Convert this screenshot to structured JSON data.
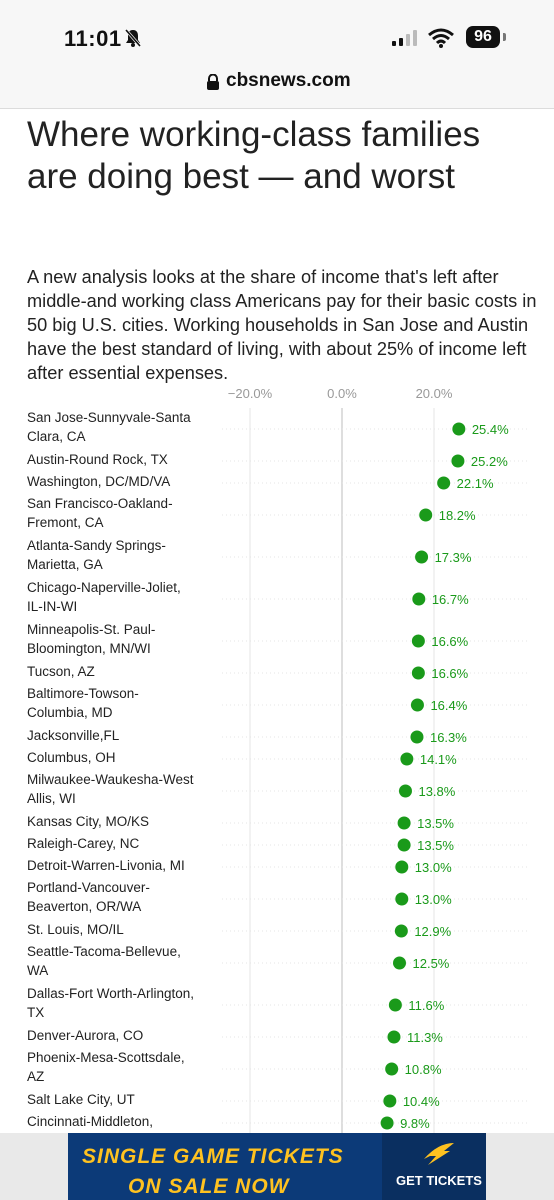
{
  "status_bar": {
    "time": "11:01",
    "battery": "96"
  },
  "browser": {
    "url": "cbsnews.com"
  },
  "article": {
    "headline": "Where working-class families are doing best — and worst",
    "dek": "A new analysis looks at the share of income that's left after middle-and working class Americans pay for their basic costs in 50 big U.S. cities. Working households in San Jose and Austin have the best standard of living, with about 25% of income left after essential expenses."
  },
  "ad": {
    "line1": "SINGLE GAME TICKETS",
    "line2": "ON SALE NOW",
    "cta": "GET TICKETS"
  },
  "colors": {
    "dot": "#1a9a1a",
    "value_text": "#1a9a1a",
    "ad_bg": "#0c3a78",
    "ad_text": "#ffc220"
  },
  "chart_data": {
    "type": "scatter",
    "x_ticks": [
      "−20.0%",
      "0.0%",
      "20.0%"
    ],
    "xlim": [
      -40,
      30
    ],
    "grid": true,
    "categories": [
      [
        "San Jose-Sunnyvale-Santa",
        "Clara, CA"
      ],
      [
        "Austin-Round Rock, TX"
      ],
      [
        "Washington, DC/MD/VA"
      ],
      [
        "San Francisco-Oakland-",
        "Fremont, CA"
      ],
      [
        "Atlanta-Sandy Springs-",
        "Marietta, GA"
      ],
      [
        "Chicago-Naperville-Joliet,",
        "IL-IN-WI"
      ],
      [
        "Minneapolis-St. Paul-",
        "Bloomington, MN/WI"
      ],
      [
        "Tucson, AZ"
      ],
      [
        "Baltimore-Towson-",
        "Columbia, MD"
      ],
      [
        "Jacksonville,FL"
      ],
      [
        "Columbus, OH"
      ],
      [
        "Milwaukee-Waukesha-West",
        "Allis, WI"
      ],
      [
        "Kansas City, MO/KS"
      ],
      [
        "Raleigh-Carey, NC"
      ],
      [
        "Detroit-Warren-Livonia, MI"
      ],
      [
        "Portland-Vancouver-",
        "Beaverton, OR/WA"
      ],
      [
        "St. Louis, MO/IL"
      ],
      [
        "Seattle-Tacoma-Bellevue,",
        "WA"
      ],
      [
        "Dallas-Fort Worth-Arlington,",
        "TX"
      ],
      [
        "Denver-Aurora, CO"
      ],
      [
        "Phoenix-Mesa-Scottsdale,",
        "AZ"
      ],
      [
        "Salt Lake City, UT"
      ],
      [
        "Cincinnati-Middleton,"
      ]
    ],
    "values": [
      25.4,
      25.2,
      22.1,
      18.2,
      17.3,
      16.7,
      16.6,
      16.6,
      16.4,
      16.3,
      14.1,
      13.8,
      13.5,
      13.5,
      13.0,
      13.0,
      12.9,
      12.5,
      11.6,
      11.3,
      10.8,
      10.4,
      9.8
    ],
    "value_labels": [
      "25.4%",
      "25.2%",
      "22.1%",
      "18.2%",
      "17.3%",
      "16.7%",
      "16.6%",
      "16.6%",
      "16.4%",
      "16.3%",
      "14.1%",
      "13.8%",
      "13.5%",
      "13.5%",
      "13.0%",
      "13.0%",
      "12.9%",
      "12.5%",
      "11.6%",
      "11.3%",
      "10.8%",
      "10.4%",
      "9.8%"
    ]
  }
}
